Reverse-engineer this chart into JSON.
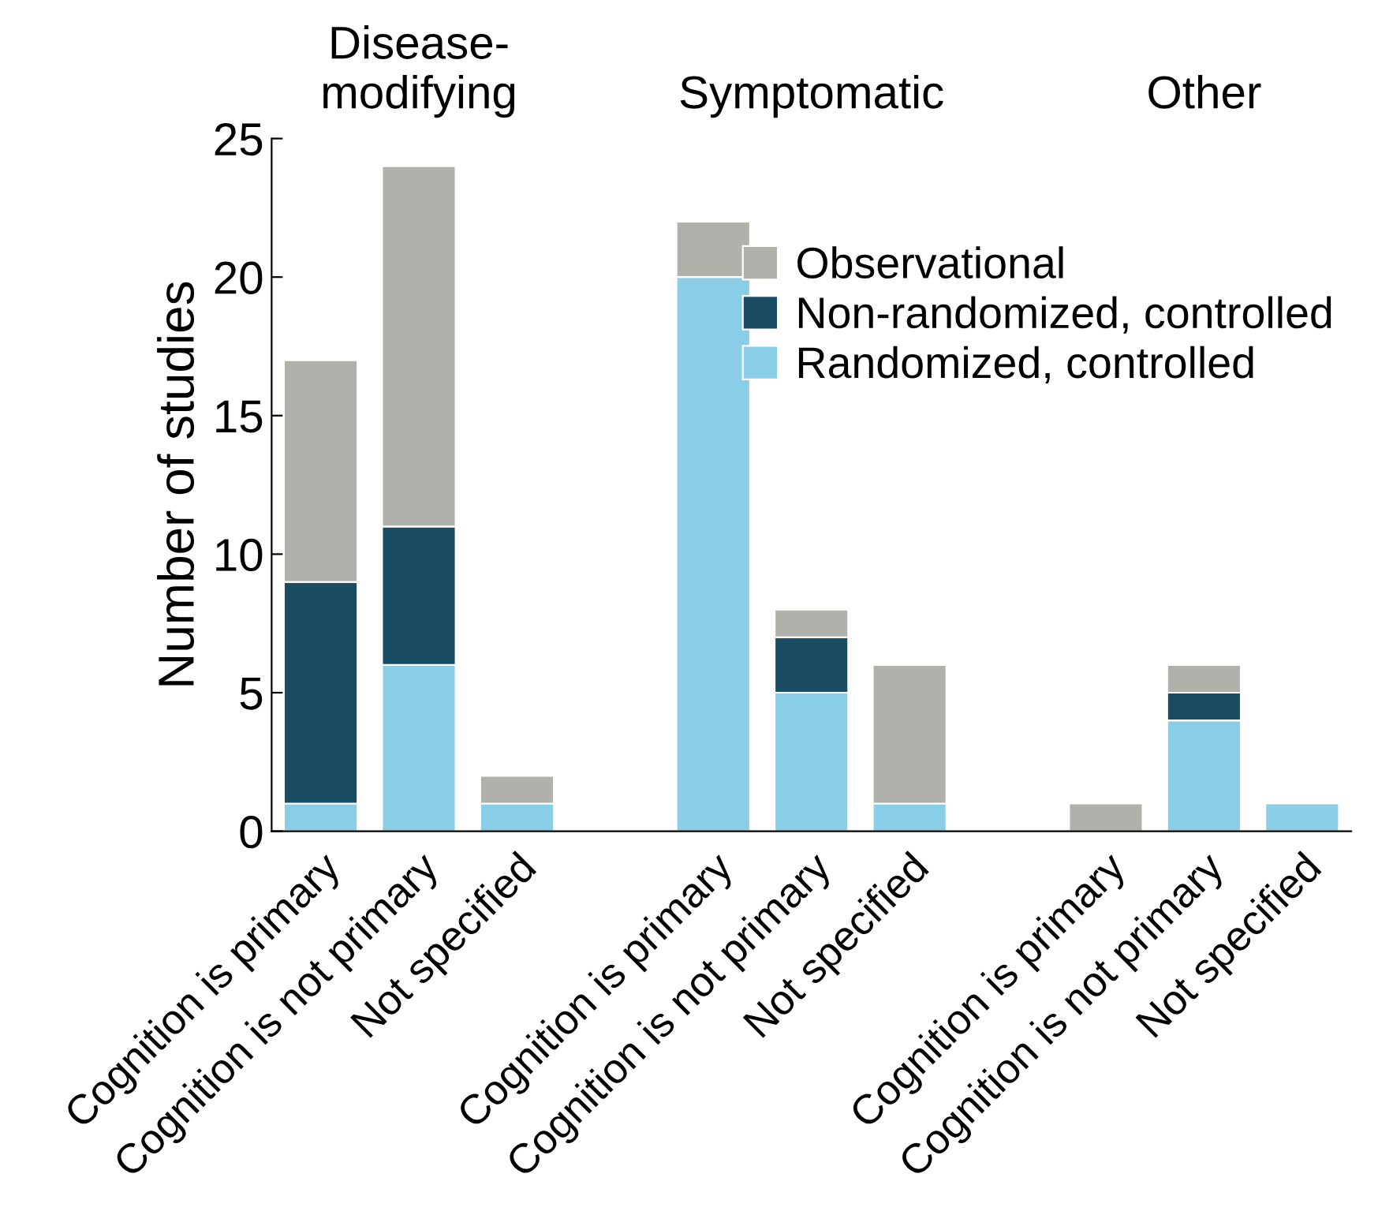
{
  "chart_data": {
    "type": "bar",
    "stacked": true,
    "ylabel": "Number of studies",
    "categories": [
      "Cognition is primary",
      "Cognition is not primary",
      "Not specified",
      null,
      "Cognition is primary",
      "Cognition is not primary",
      "Not specified",
      null,
      "Cognition is primary",
      "Cognition is not primary",
      "Not specified"
    ],
    "series": [
      {
        "name": "Randomized, controlled",
        "color": "#89cde6",
        "values": [
          1,
          6,
          1,
          null,
          20,
          5,
          1,
          null,
          0,
          4,
          1
        ]
      },
      {
        "name": "Non-randomized, controlled",
        "color": "#1a4d63",
        "values": [
          8,
          5,
          0,
          null,
          0,
          2,
          0,
          null,
          0,
          1,
          0
        ]
      },
      {
        "name": "Observational",
        "color": "#b1b1ac",
        "values": [
          8,
          13,
          1,
          null,
          2,
          1,
          5,
          null,
          1,
          1,
          0
        ]
      }
    ],
    "annotations": [
      "Disease-\nmodifying",
      "Symptomatic",
      "Other"
    ],
    "ylim": [
      0,
      25
    ],
    "yticks": [
      0,
      5,
      10,
      15,
      20,
      25
    ],
    "grid": false,
    "legend": "top right"
  }
}
